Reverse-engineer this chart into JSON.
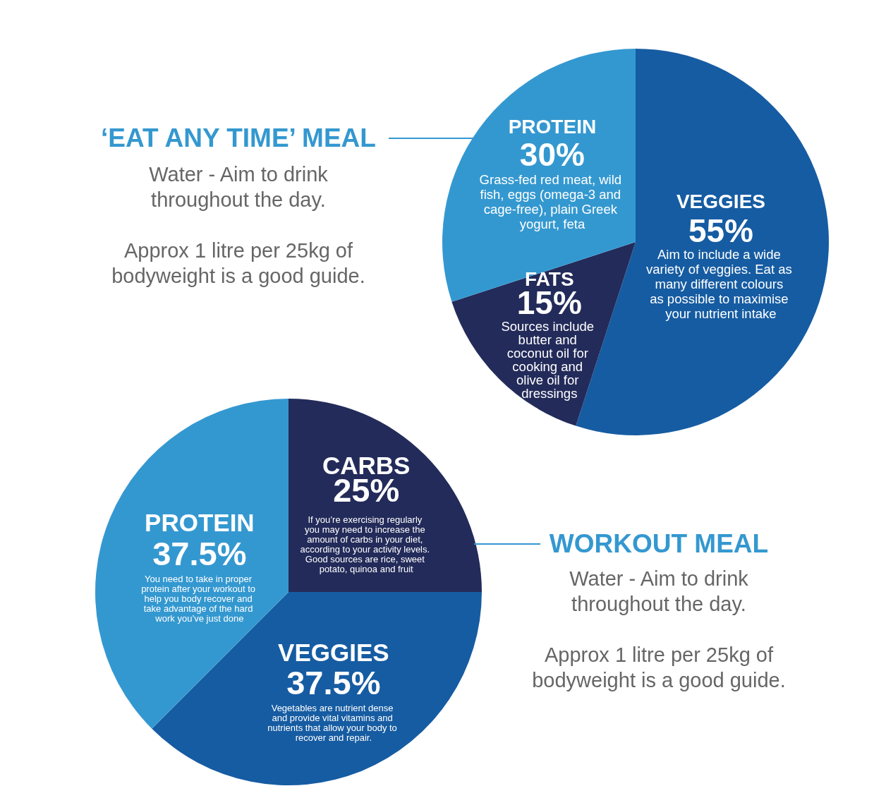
{
  "chart_data": [
    {
      "type": "pie",
      "title": "‘EAT ANY TIME’ MEAL",
      "categories": [
        "VEGGIES",
        "FATS",
        "PROTEIN"
      ],
      "values": [
        55,
        15,
        30
      ],
      "colors": [
        "#165ca2",
        "#232b5a",
        "#3498d0"
      ],
      "value_labels": [
        "55%",
        "15%",
        "30%"
      ],
      "annotations": [
        "Water - Aim to drink\nthroughout the day.",
        "Approx 1 litre per 25kg of\nbodyweight is a good guide.",
        {
          "text": "Aim to include a wide\nvariety of veggies. Eat as\nmany different colours\nas possible to maximise\nyour nutrient intake",
          "x": "VEGGIES"
        },
        {
          "text": "Sources include\nbutter and\ncoconut oil for\ncooking and\nolive oil for\ndressings",
          "x": "FATS"
        },
        {
          "text": "Grass-fed red meat, wild\nfish, eggs (omega-3 and\ncage-free), plain Greek\nyogurt, feta",
          "x": "PROTEIN"
        }
      ]
    },
    {
      "type": "pie",
      "title": "WORKOUT MEAL",
      "categories": [
        "CARBS",
        "VEGGIES",
        "PROTEIN"
      ],
      "values": [
        25,
        37.5,
        37.5
      ],
      "colors": [
        "#232b5a",
        "#165ca2",
        "#3498d0"
      ],
      "value_labels": [
        "25%",
        "37.5%",
        "37.5%"
      ],
      "annotations": [
        "Water - Aim to drink\nthroughout the day.",
        "Approx 1 litre per 25kg of\nbodyweight is a good guide.",
        {
          "text": "If you’re exercising regularly\nyou may need to increase the\namount of carbs in your diet,\naccording to your activity levels.\nGood sources are rice, sweet\npotato, quinoa and fruit",
          "x": "CARBS"
        },
        {
          "text": "Vegetables are nutrient dense\nand provide vital vitamins and\nnutrients that allow your body to\nrecover and repair.",
          "x": "VEGGIES"
        },
        {
          "text": "You need to take in proper\nprotein after your workout to\nhelp you body recover and\ntake advantage of the hard\nwork you’ve just done",
          "x": "PROTEIN"
        }
      ]
    }
  ]
}
